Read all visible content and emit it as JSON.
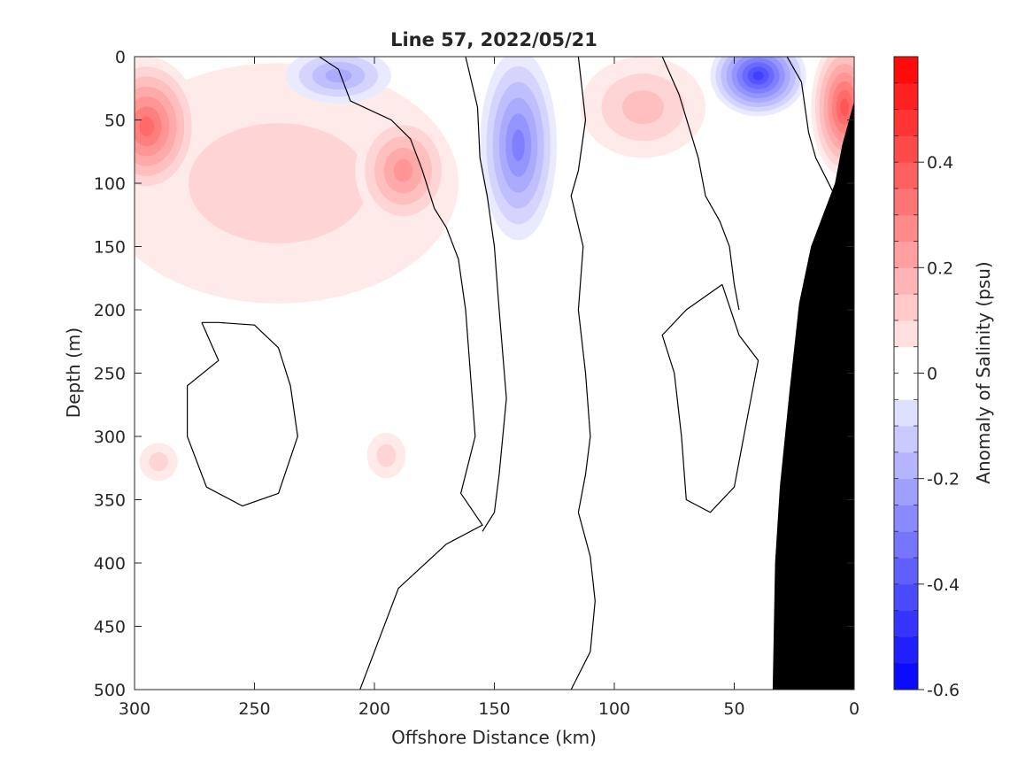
{
  "chart_data": {
    "type": "heatmap",
    "title": "Line 57, 2022/05/21",
    "xlabel": "Offshore Distance (km)",
    "ylabel": "Depth (m)",
    "xlim": [
      300,
      0
    ],
    "ylim": [
      0,
      500
    ],
    "x_reversed": true,
    "y_reversed": true,
    "x_ticks": [
      300,
      250,
      200,
      150,
      100,
      50,
      0
    ],
    "y_ticks": [
      0,
      50,
      100,
      150,
      200,
      250,
      300,
      350,
      400,
      450,
      500
    ],
    "colorbar": {
      "label": "Anomaly of Salinity (psu)",
      "range": [
        -0.6,
        0.6
      ],
      "step": 0.05,
      "ticks": [
        -0.6,
        -0.4,
        -0.2,
        0,
        0.2,
        0.4
      ],
      "tick_labels": [
        "-0.6",
        "-0.4",
        "-0.2",
        "0",
        "0.2",
        "0.4"
      ],
      "colormap": "blue-white-red"
    },
    "grid": false,
    "bathymetry_color": "#000000",
    "bathymetry": [
      [
        0,
        35
      ],
      [
        5,
        70
      ],
      [
        8,
        100
      ],
      [
        18,
        150
      ],
      [
        23,
        195
      ],
      [
        27,
        265
      ],
      [
        31,
        340
      ],
      [
        33,
        400
      ],
      [
        34,
        500
      ]
    ],
    "anomaly_features": [
      {
        "x": 295,
        "y": 55,
        "rx": 22,
        "ry": 55,
        "value": 0.35
      },
      {
        "x": 188,
        "y": 90,
        "rx": 20,
        "ry": 45,
        "value": 0.25
      },
      {
        "x": 88,
        "y": 40,
        "rx": 26,
        "ry": 40,
        "value": 0.17
      },
      {
        "x": 4,
        "y": 40,
        "rx": 14,
        "ry": 55,
        "value": 0.4
      },
      {
        "x": 215,
        "y": 15,
        "rx": 22,
        "ry": 22,
        "value": -0.2
      },
      {
        "x": 140,
        "y": 70,
        "rx": 16,
        "ry": 75,
        "value": -0.28
      },
      {
        "x": 40,
        "y": 15,
        "rx": 20,
        "ry": 32,
        "value": -0.45
      },
      {
        "x": 240,
        "y": 100,
        "rx": 75,
        "ry": 95,
        "value": 0.1
      },
      {
        "x": 290,
        "y": 320,
        "rx": 8,
        "ry": 15,
        "value": 0.08
      },
      {
        "x": 195,
        "y": 315,
        "rx": 8,
        "ry": 18,
        "value": 0.08
      }
    ],
    "zero_contours": [
      [
        [
          223,
          0
        ],
        [
          215,
          10
        ],
        [
          210,
          35
        ],
        [
          193,
          50
        ],
        [
          185,
          65
        ],
        [
          180,
          90
        ],
        [
          175,
          120
        ],
        [
          170,
          135
        ],
        [
          165,
          160
        ],
        [
          162,
          200
        ],
        [
          160,
          250
        ],
        [
          158,
          300
        ],
        [
          164,
          345
        ],
        [
          155,
          370
        ],
        [
          170,
          385
        ],
        [
          190,
          420
        ],
        [
          198,
          460
        ],
        [
          206,
          500
        ]
      ],
      [
        [
          162,
          0
        ],
        [
          157,
          40
        ],
        [
          156,
          80
        ],
        [
          153,
          110
        ],
        [
          150,
          150
        ],
        [
          148,
          200
        ],
        [
          145,
          270
        ],
        [
          148,
          330
        ],
        [
          150,
          360
        ],
        [
          155,
          375
        ]
      ],
      [
        [
          115,
          0
        ],
        [
          112,
          50
        ],
        [
          115,
          90
        ],
        [
          118,
          110
        ],
        [
          113,
          150
        ],
        [
          115,
          200
        ],
        [
          112,
          250
        ],
        [
          110,
          300
        ],
        [
          112,
          330
        ],
        [
          115,
          360
        ],
        [
          110,
          395
        ],
        [
          108,
          430
        ],
        [
          110,
          470
        ],
        [
          118,
          500
        ]
      ],
      [
        [
          80,
          0
        ],
        [
          73,
          30
        ],
        [
          65,
          80
        ],
        [
          62,
          110
        ],
        [
          56,
          130
        ],
        [
          52,
          150
        ],
        [
          50,
          180
        ],
        [
          48,
          200
        ]
      ],
      [
        [
          28,
          0
        ],
        [
          22,
          20
        ],
        [
          19,
          60
        ],
        [
          16,
          80
        ],
        [
          12,
          95
        ],
        [
          8,
          110
        ],
        [
          5,
          120
        ],
        [
          0,
          125
        ]
      ],
      [
        [
          272,
          210
        ],
        [
          265,
          240
        ],
        [
          278,
          260
        ],
        [
          278,
          300
        ],
        [
          270,
          340
        ],
        [
          255,
          355
        ],
        [
          240,
          345
        ],
        [
          232,
          300
        ],
        [
          235,
          260
        ],
        [
          240,
          230
        ],
        [
          250,
          212
        ],
        [
          265,
          210
        ],
        [
          272,
          210
        ]
      ],
      [
        [
          55,
          180
        ],
        [
          48,
          220
        ],
        [
          40,
          240
        ],
        [
          45,
          290
        ],
        [
          50,
          340
        ],
        [
          60,
          360
        ],
        [
          70,
          350
        ],
        [
          72,
          300
        ],
        [
          75,
          250
        ],
        [
          80,
          220
        ],
        [
          70,
          200
        ],
        [
          55,
          180
        ]
      ]
    ]
  }
}
